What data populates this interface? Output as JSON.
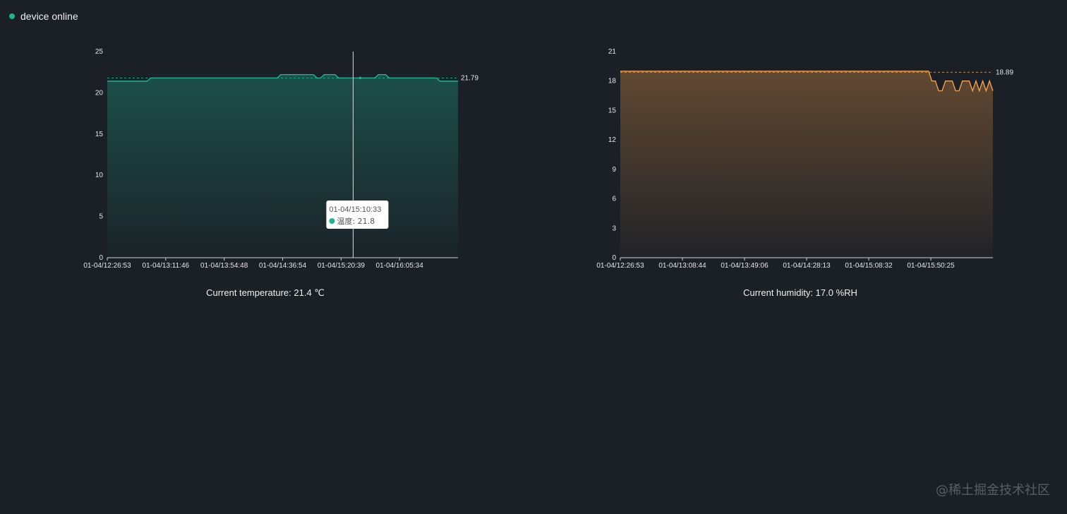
{
  "status": {
    "label": "device online",
    "color": "#1fb393"
  },
  "chart_data": [
    {
      "type": "area",
      "color": "#1fb393",
      "ylim": [
        0,
        25
      ],
      "yticks": [
        0,
        5,
        10,
        15,
        20,
        25
      ],
      "xtick_labels": [
        "01-04/12:26:53",
        "01-04/13:11:46",
        "01-04/13:54:48",
        "01-04/14:36:54",
        "01-04/15:20:39",
        "01-04/16:05:34"
      ],
      "series": [
        {
          "values": [
            21.4,
            21.4,
            21.4,
            21.4,
            21.4,
            21.4,
            21.4,
            21.4,
            21.4,
            21.4,
            21.4,
            21.4,
            21.8,
            21.8,
            21.8,
            21.8,
            21.8,
            21.8,
            21.8,
            21.8,
            21.8,
            21.8,
            21.8,
            21.8,
            21.8,
            21.8,
            21.8,
            21.8,
            21.8,
            21.8,
            21.8,
            21.8,
            21.8,
            21.8,
            21.8,
            21.8,
            21.8,
            21.8,
            21.8,
            21.8,
            21.8,
            21.8,
            21.8,
            21.8,
            21.8,
            21.8,
            21.8,
            21.8,
            22.2,
            22.2,
            22.2,
            22.2,
            22.2,
            22.2,
            22.2,
            22.2,
            22.2,
            22.2,
            21.8,
            21.8,
            22.2,
            22.2,
            22.2,
            22.2,
            21.8,
            21.8,
            21.8,
            21.8,
            21.8,
            21.8,
            21.8,
            21.8,
            21.8,
            21.8,
            21.8,
            22.2,
            22.2,
            22.2,
            21.8,
            21.8,
            21.8,
            21.8,
            21.8,
            21.8,
            21.8,
            21.8,
            21.8,
            21.8,
            21.8,
            21.8,
            21.8,
            21.8,
            21.4,
            21.4,
            21.4,
            21.4,
            21.4,
            21.4
          ]
        }
      ],
      "mean_line": {
        "value": 21.79,
        "label": "21.79"
      },
      "tooltip": {
        "time": "01-04/15:10:33",
        "series_name": "温度",
        "value_text": "21.8",
        "index": 68
      },
      "caption": "Current temperature: 21.4 ℃"
    },
    {
      "type": "area",
      "color": "#f5a04a",
      "ylim": [
        0,
        21
      ],
      "yticks": [
        0,
        3,
        6,
        9,
        12,
        15,
        18,
        21
      ],
      "xtick_labels": [
        "01-04/12:26:53",
        "01-04/13:08:44",
        "01-04/13:49:06",
        "01-04/14:28:13",
        "01-04/15:08:32",
        "01-04/15:50:25"
      ],
      "series": [
        {
          "values": [
            19.0,
            19.0,
            19.0,
            19.0,
            19.0,
            19.0,
            19.0,
            19.0,
            19.0,
            19.0,
            19.0,
            19.0,
            19.0,
            19.0,
            19.0,
            19.0,
            19.0,
            19.0,
            19.0,
            19.0,
            19.0,
            19.0,
            19.0,
            19.0,
            19.0,
            19.0,
            19.0,
            19.0,
            19.0,
            19.0,
            19.0,
            19.0,
            19.0,
            19.0,
            19.0,
            19.0,
            19.0,
            19.0,
            19.0,
            19.0,
            19.0,
            19.0,
            19.0,
            19.0,
            19.0,
            19.0,
            19.0,
            19.0,
            19.0,
            19.0,
            19.0,
            19.0,
            19.0,
            19.0,
            19.0,
            19.0,
            19.0,
            19.0,
            19.0,
            19.0,
            19.0,
            19.0,
            19.0,
            19.0,
            19.0,
            19.0,
            19.0,
            19.0,
            19.0,
            19.0,
            19.0,
            19.0,
            19.0,
            19.0,
            19.0,
            19.0,
            19.0,
            19.0,
            19.0,
            19.0,
            19.0,
            19.0,
            19.0,
            19.0,
            19.0,
            19.0,
            19.0,
            19.0,
            19.0,
            19.0,
            19.0,
            19.0,
            18.0,
            18.0,
            17.0,
            17.0,
            18.0,
            18.0,
            18.0,
            17.0,
            17.0,
            18.0,
            18.0,
            18.0,
            17.0,
            18.0,
            17.0,
            18.0,
            17.0,
            18.0,
            17.0
          ]
        }
      ],
      "mean_line": {
        "value": 18.89,
        "label": "18.89"
      },
      "caption": "Current humidity: 17.0 %RH"
    }
  ],
  "watermark": "@稀土掘金技术社区"
}
